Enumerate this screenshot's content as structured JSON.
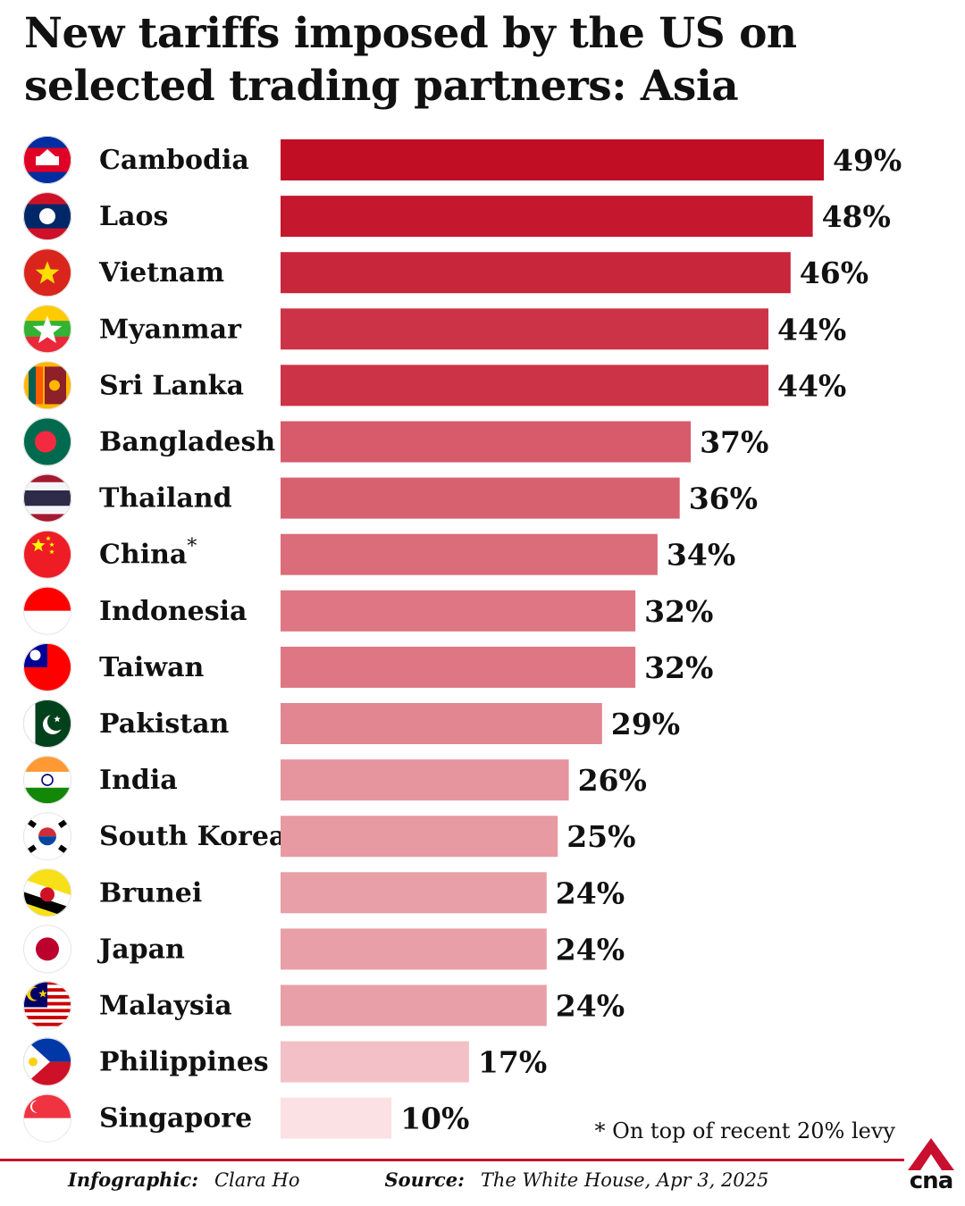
{
  "title": "New tariffs imposed by the US on selected trading partners: Asia",
  "footnote": "* On top of recent 20% levy",
  "credits": {
    "infographic_label": "Infographic:",
    "infographic_value": "Clara Ho",
    "source_label": "Source:",
    "source_value": "The White House, Apr 3, 2025"
  },
  "logo": {
    "text": "cna"
  },
  "chart_data": {
    "type": "bar",
    "orientation": "horizontal",
    "title": "New tariffs imposed by the US on selected trading partners: Asia",
    "xlabel": "",
    "ylabel": "",
    "xlim": [
      0,
      49
    ],
    "grid": false,
    "legend": "none",
    "unit": "%",
    "categories": [
      "Cambodia",
      "Laos",
      "Vietnam",
      "Myanmar",
      "Sri Lanka",
      "Bangladesh",
      "Thailand",
      "China",
      "Indonesia",
      "Taiwan",
      "Pakistan",
      "India",
      "South Korea",
      "Brunei",
      "Japan",
      "Malaysia",
      "Philippines",
      "Singapore"
    ],
    "values": [
      49,
      48,
      46,
      44,
      44,
      37,
      36,
      34,
      32,
      32,
      29,
      26,
      25,
      24,
      24,
      24,
      17,
      10
    ],
    "value_labels": [
      "49%",
      "48%",
      "46%",
      "44%",
      "44%",
      "37%",
      "36%",
      "34%",
      "32%",
      "32%",
      "29%",
      "26%",
      "25%",
      "24%",
      "24%",
      "24%",
      "17%",
      "10%"
    ],
    "annotated": {
      "China": "*"
    },
    "flag_icons": [
      "cambodia-flag-icon",
      "laos-flag-icon",
      "vietnam-flag-icon",
      "myanmar-flag-icon",
      "sri-lanka-flag-icon",
      "bangladesh-flag-icon",
      "thailand-flag-icon",
      "china-flag-icon",
      "indonesia-flag-icon",
      "taiwan-flag-icon",
      "pakistan-flag-icon",
      "india-flag-icon",
      "south-korea-flag-icon",
      "brunei-flag-icon",
      "japan-flag-icon",
      "malaysia-flag-icon",
      "philippines-flag-icon",
      "singapore-flag-icon"
    ],
    "colors": {
      "bar_max": "#c20e25",
      "bar_min": "#fbe1e3",
      "rule": "#c8102e"
    }
  }
}
